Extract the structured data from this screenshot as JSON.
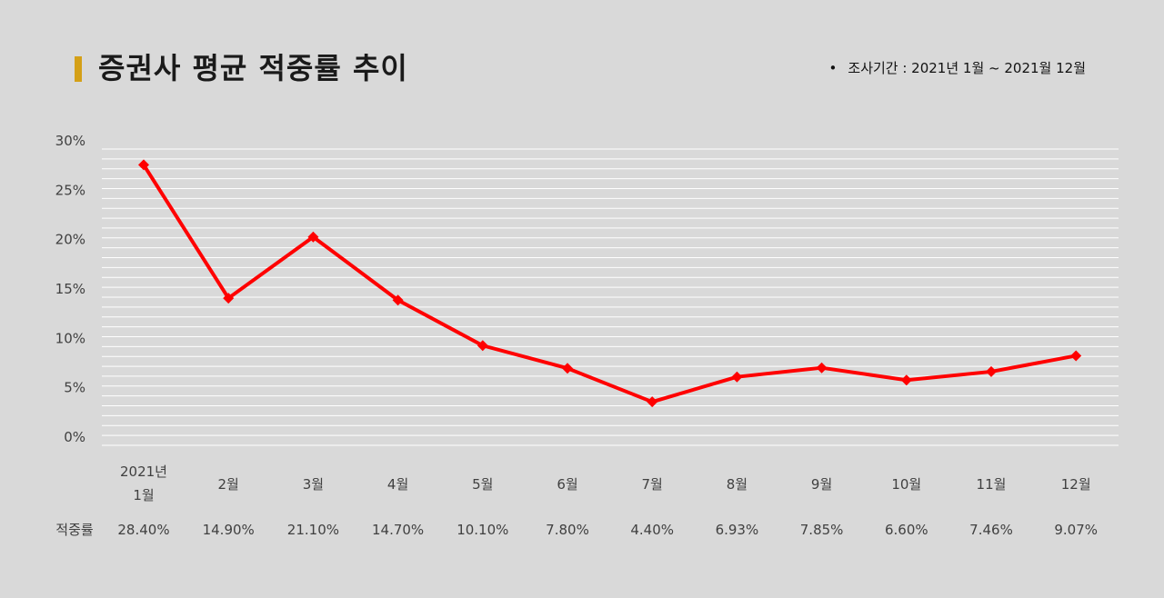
{
  "header": {
    "title": "증권사 평균 적중률 추이",
    "period_bullet": "•",
    "period": "조사기간 : 2021년 1월 ~ 2021월 12월"
  },
  "colors": {
    "accent": "#d4a017",
    "line": "#ff0000",
    "grid": "#ffffff",
    "background": "#d9d9d9"
  },
  "chart_data": {
    "type": "line",
    "title": "증권사 평균 적중률 추이",
    "categories": [
      "2021년\n1월",
      "2월",
      "3월",
      "4월",
      "5월",
      "6월",
      "7월",
      "8월",
      "9월",
      "10월",
      "11월",
      "12월"
    ],
    "series": [
      {
        "name": "적중률",
        "values": [
          28.4,
          14.9,
          21.1,
          14.7,
          10.1,
          7.8,
          4.4,
          6.93,
          7.85,
          6.6,
          7.46,
          9.07
        ]
      }
    ],
    "data_labels": [
      "28.40%",
      "14.90%",
      "21.10%",
      "14.70%",
      "10.10%",
      "7.80%",
      "4.40%",
      "6.93%",
      "7.85%",
      "6.60%",
      "7.46%",
      "9.07%"
    ],
    "table_row_label": "적중률",
    "y_ticks": [
      "0%",
      "5%",
      "10%",
      "15%",
      "20%",
      "25%",
      "30%"
    ],
    "ylim": [
      0,
      30
    ],
    "grid": true,
    "legend": "none",
    "marker": "diamond"
  }
}
